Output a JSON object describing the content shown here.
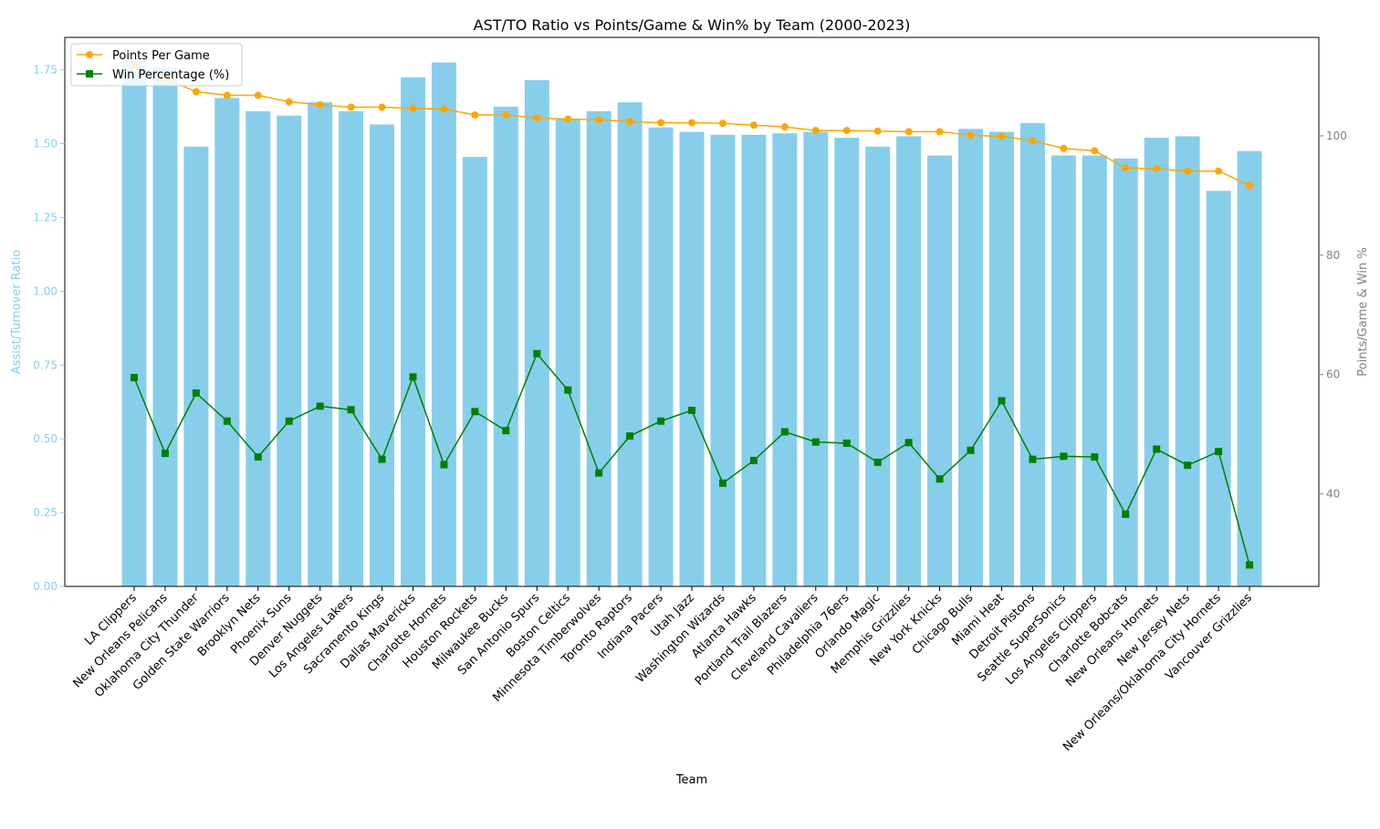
{
  "chart_data": {
    "type": "bar",
    "title": "AST/TO Ratio vs Points/Game & Win% by Team (2000-2023)",
    "xlabel": "Team",
    "ylabel_left": "Assist/Turnover Ratio",
    "ylabel_right": "Points/Game & Win %",
    "ylim_left": [
      0,
      1.86
    ],
    "ylim_right": [
      24.5,
      116.5
    ],
    "yticks_left": [
      "0.00",
      "0.25",
      "0.50",
      "0.75",
      "1.00",
      "1.25",
      "1.50",
      "1.75"
    ],
    "yticks_right": [
      "40",
      "60",
      "80",
      "100"
    ],
    "categories": [
      "LA Clippers",
      "New Orleans Pelicans",
      "Oklahoma City Thunder",
      "Golden State Warriors",
      "Brooklyn Nets",
      "Phoenix Suns",
      "Denver Nuggets",
      "Los Angeles Lakers",
      "Sacramento Kings",
      "Dallas Mavericks",
      "Charlotte Hornets",
      "Houston Rockets",
      "Milwaukee Bucks",
      "San Antonio Spurs",
      "Boston Celtics",
      "Minnesota Timberwolves",
      "Toronto Raptors",
      "Indiana Pacers",
      "Utah Jazz",
      "Washington Wizards",
      "Atlanta Hawks",
      "Portland Trail Blazers",
      "Cleveland Cavaliers",
      "Philadelphia 76ers",
      "Orlando Magic",
      "Memphis Grizzlies",
      "New York Knicks",
      "Chicago Bulls",
      "Miami Heat",
      "Detroit Pistons",
      "Seattle SuperSonics",
      "Los Angeles Clippers",
      "Charlotte Bobcats",
      "New Orleans Hornets",
      "New Jersey Nets",
      "New Orleans/Oklahoma City Hornets",
      "Vancouver Grizzlies"
    ],
    "series": [
      {
        "name": "Assist/Turnover Ratio",
        "axis": "left",
        "type": "bar",
        "color": "#87ceeb",
        "values": [
          1.78,
          1.76,
          1.49,
          1.655,
          1.61,
          1.595,
          1.64,
          1.61,
          1.565,
          1.725,
          1.775,
          1.455,
          1.625,
          1.715,
          1.585,
          1.61,
          1.64,
          1.555,
          1.54,
          1.53,
          1.53,
          1.535,
          1.54,
          1.52,
          1.49,
          1.525,
          1.46,
          1.55,
          1.54,
          1.57,
          1.46,
          1.46,
          1.45,
          1.52,
          1.525,
          1.34,
          1.475
        ]
      },
      {
        "name": "Points Per Game",
        "axis": "right",
        "type": "line",
        "marker": "circle",
        "color": "#ffa500",
        "values": [
          111.7,
          109.6,
          107.4,
          106.8,
          106.8,
          105.7,
          105.2,
          104.8,
          104.8,
          104.6,
          104.5,
          103.5,
          103.5,
          103.0,
          102.8,
          102.7,
          102.4,
          102.2,
          102.2,
          102.1,
          101.8,
          101.5,
          100.9,
          100.9,
          100.8,
          100.7,
          100.7,
          100.1,
          99.9,
          99.2,
          97.9,
          97.5,
          94.6,
          94.5,
          94.1,
          94.1,
          91.7
        ]
      },
      {
        "name": "Win Percentage (%)",
        "axis": "right",
        "type": "line",
        "marker": "square",
        "color": "#008000",
        "values": [
          59.5,
          46.8,
          56.9,
          52.2,
          46.2,
          52.2,
          54.7,
          54.1,
          45.8,
          59.6,
          44.9,
          53.8,
          50.6,
          63.5,
          57.4,
          43.5,
          49.7,
          52.2,
          54.0,
          41.8,
          45.6,
          50.4,
          48.7,
          48.5,
          45.3,
          48.6,
          42.5,
          47.3,
          55.6,
          45.8,
          46.3,
          46.2,
          36.6,
          47.5,
          44.8,
          47.1,
          28.1
        ]
      }
    ],
    "legend": {
      "position": "upper-left",
      "entries": [
        "Points Per Game",
        "Win Percentage (%)"
      ]
    },
    "grid": false
  }
}
